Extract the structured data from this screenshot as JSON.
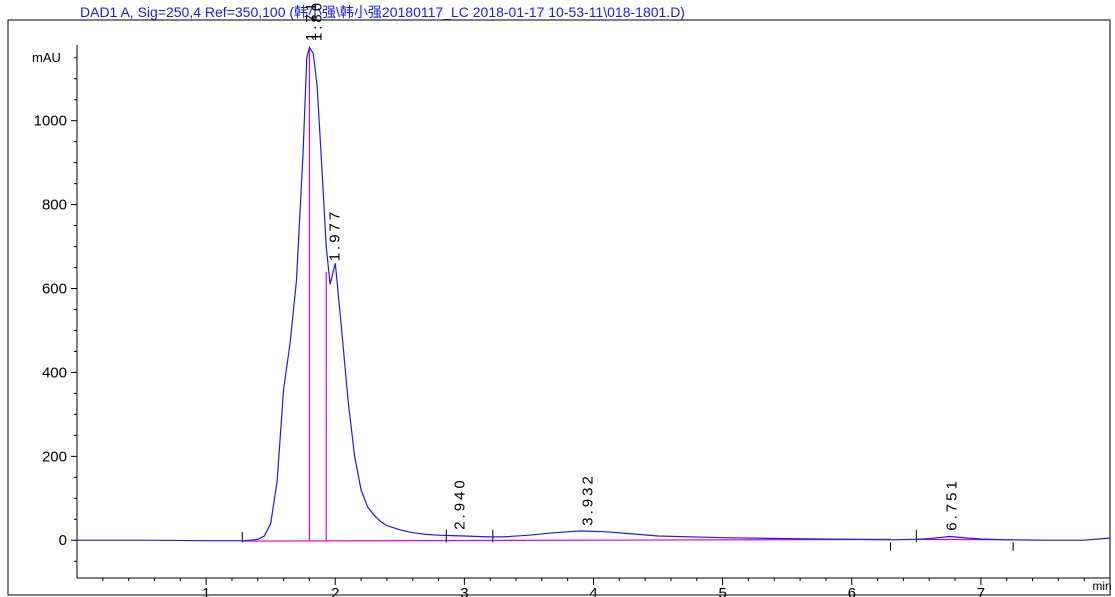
{
  "chart_data": {
    "type": "line",
    "title": "DAD1 A, Sig=250,4 Ref=350,100 (韩小强\\韩小强20180117_LC 2018-01-17 10-53-11\\018-1801.D)",
    "xlabel": "min",
    "ylabel": "mAU",
    "xlim": [
      0.0,
      8.0
    ],
    "ylim": [
      -90,
      1240
    ],
    "xticks": [
      1,
      2,
      3,
      4,
      5,
      6,
      7
    ],
    "yticks": [
      0,
      200,
      400,
      600,
      800,
      1000
    ],
    "series": [
      {
        "x": [
          0.0,
          0.5,
          1.0,
          1.2,
          1.3,
          1.4,
          1.45,
          1.5,
          1.55,
          1.6,
          1.65,
          1.7,
          1.75,
          1.78,
          1.8,
          1.83,
          1.86,
          1.9,
          1.93,
          1.96,
          2.0,
          2.05,
          2.1,
          2.15,
          2.2,
          2.25,
          2.3,
          2.35,
          2.4,
          2.5,
          2.6,
          2.7,
          2.8,
          2.9,
          3.0,
          3.1,
          3.2,
          3.3,
          3.5,
          3.7,
          3.9,
          4.1,
          4.3,
          4.5,
          5.0,
          5.5,
          6.0,
          6.3,
          6.5,
          6.6,
          6.7,
          6.75,
          6.8,
          6.9,
          7.0,
          7.2,
          7.5,
          7.8,
          8.0
        ],
        "y": [
          0,
          0,
          -1,
          -1,
          -1,
          2,
          10,
          40,
          140,
          360,
          470,
          620,
          920,
          1150,
          1175,
          1160,
          1080,
          870,
          700,
          610,
          660,
          500,
          330,
          200,
          120,
          80,
          60,
          45,
          35,
          25,
          18,
          14,
          12,
          11,
          10,
          9,
          8,
          8,
          12,
          18,
          22,
          20,
          15,
          10,
          6,
          4,
          2,
          1,
          2,
          4,
          7,
          9,
          8,
          5,
          3,
          1,
          0,
          0,
          5
        ]
      }
    ],
    "peaks": [
      {
        "rt": "1.719",
        "x": 1.79
      },
      {
        "rt": "1.804",
        "x": 1.83
      },
      {
        "rt": "1.977",
        "x": 1.97
      },
      {
        "rt": "2.940",
        "x": 2.94
      },
      {
        "rt": "3.932",
        "x": 3.93
      },
      {
        "rt": "6.751",
        "x": 6.75
      }
    ],
    "colors": {
      "signal": "#1a1aff",
      "baseline": "#e000e0",
      "axis": "#000000",
      "title": "#1a1aff"
    },
    "grid": false
  }
}
